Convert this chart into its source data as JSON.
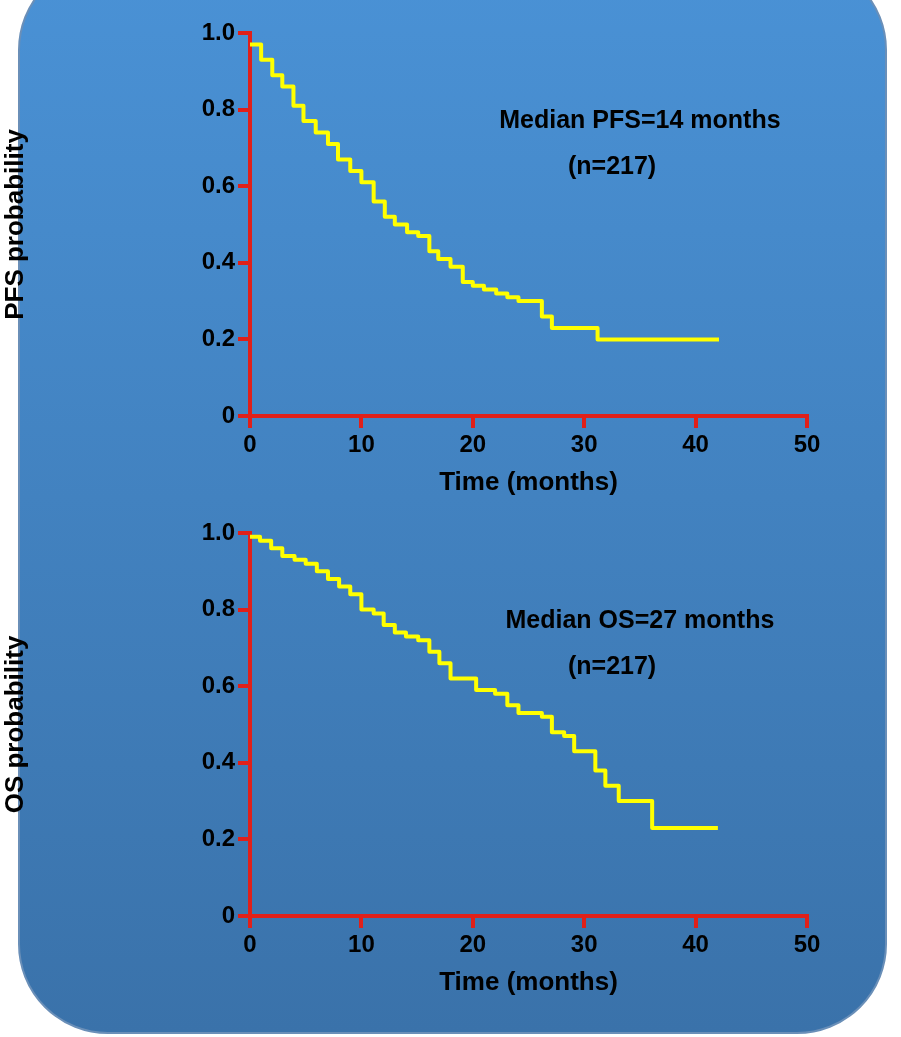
{
  "chart_data": [
    {
      "type": "step",
      "xlabel": "Time (months)",
      "ylabel": "PFS probability",
      "xlim": [
        0,
        50
      ],
      "xticks": [
        0,
        10,
        20,
        30,
        40,
        50
      ],
      "ylim": [
        0,
        1
      ],
      "yticks": [
        0,
        0.2,
        0.4,
        0.6,
        0.8,
        {
          "value": 1,
          "label": "1.0"
        }
      ],
      "grid": false,
      "annotations": [
        "Median PFS=14 months",
        "(n=217)"
      ],
      "series": [
        {
          "color": "#ffff00",
          "x": [
            0,
            1.0,
            2.0,
            2.9,
            3.9,
            4.8,
            5.9,
            7.0,
            7.9,
            9.0,
            10.0,
            11.1,
            12.1,
            13.0,
            14.1,
            15.1,
            16.1,
            16.9,
            18.0,
            19.1,
            20.0,
            21.0,
            22.1,
            23.1,
            24.1,
            26.2,
            27.1,
            31.2,
            42.1
          ],
          "values": [
            0.97,
            0.93,
            0.89,
            0.86,
            0.81,
            0.77,
            0.74,
            0.71,
            0.67,
            0.64,
            0.61,
            0.56,
            0.52,
            0.5,
            0.48,
            0.47,
            0.43,
            0.41,
            0.39,
            0.35,
            0.34,
            0.33,
            0.32,
            0.31,
            0.3,
            0.26,
            0.23,
            0.2,
            0.2
          ]
        }
      ]
    },
    {
      "type": "step",
      "xlabel": "Time (months)",
      "ylabel": "OS probability",
      "xlim": [
        0,
        50
      ],
      "xticks": [
        0,
        10,
        20,
        30,
        40,
        50
      ],
      "ylim": [
        0,
        1
      ],
      "yticks": [
        0,
        0.2,
        0.4,
        0.6,
        0.8,
        {
          "value": 1,
          "label": "1.0"
        }
      ],
      "grid": false,
      "annotations": [
        "Median OS=27 months",
        "(n=217)"
      ],
      "series": [
        {
          "color": "#ffff00",
          "x": [
            0,
            0.9,
            1.9,
            2.9,
            4.0,
            5.0,
            6.0,
            7.0,
            8.0,
            9.0,
            10.0,
            11.1,
            12.0,
            13.0,
            14.0,
            15.1,
            16.1,
            17.0,
            18.0,
            20.3,
            22.0,
            23.1,
            24.1,
            26.2,
            27.1,
            28.2,
            29.1,
            31.0,
            31.9,
            33.1,
            36.1,
            42.0
          ],
          "values": [
            0.99,
            0.98,
            0.96,
            0.94,
            0.93,
            0.92,
            0.9,
            0.88,
            0.86,
            0.84,
            0.8,
            0.79,
            0.76,
            0.74,
            0.73,
            0.72,
            0.69,
            0.66,
            0.62,
            0.59,
            0.58,
            0.55,
            0.53,
            0.52,
            0.48,
            0.47,
            0.43,
            0.38,
            0.34,
            0.3,
            0.23,
            0.23
          ]
        }
      ]
    }
  ]
}
